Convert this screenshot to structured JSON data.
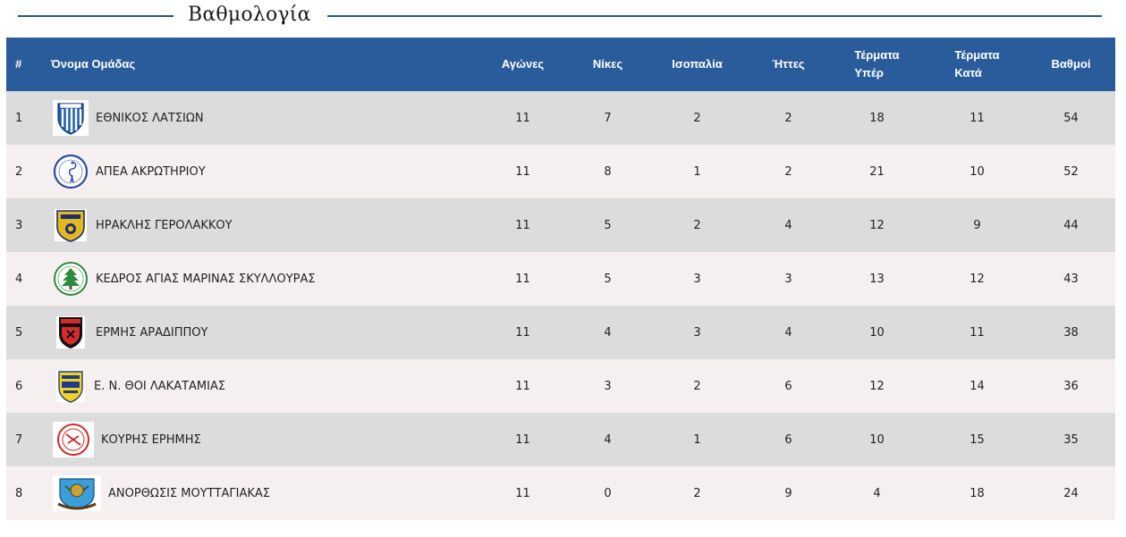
{
  "page": {
    "title": "Βαθμολογία"
  },
  "table": {
    "headers": {
      "pos": "#",
      "team": "Όνομα Ομάδας",
      "games": "Αγώνες",
      "wins": "Νίκες",
      "draws": "Ισοπαλία",
      "losses": "Ήττες",
      "goals_for_line1": "Τέρματα",
      "goals_for_line2": "Υπέρ",
      "goals_against_line1": "Τέρματα",
      "goals_against_line2": "Κατά",
      "points": "Βαθμοί"
    },
    "rows": [
      {
        "pos": "1",
        "team": "ΕΘΝΙΚΟΣ ΛΑΤΣΙΩΝ",
        "logo": "ethnikos-latsion-crest",
        "games": "11",
        "wins": "7",
        "draws": "2",
        "losses": "2",
        "goals_for": "18",
        "goals_against": "11",
        "points": "54"
      },
      {
        "pos": "2",
        "team": "ΑΠΕΑ ΑΚΡΩΤΗΡΙΟΥ",
        "logo": "apea-akrotiriou-crest",
        "games": "11",
        "wins": "8",
        "draws": "1",
        "losses": "2",
        "goals_for": "21",
        "goals_against": "10",
        "points": "52"
      },
      {
        "pos": "3",
        "team": "ΗΡΑΚΛΗΣ ΓΕΡΟΛΑΚΚΟΥ",
        "logo": "iraklis-gerolakkou-crest",
        "games": "11",
        "wins": "5",
        "draws": "2",
        "losses": "4",
        "goals_for": "12",
        "goals_against": "9",
        "points": "44"
      },
      {
        "pos": "4",
        "team": "ΚΕΔΡΟΣ ΑΓΙΑΣ ΜΑΡΙΝΑΣ ΣΚΥΛΛΟΥΡΑΣ",
        "logo": "kedros-crest",
        "games": "11",
        "wins": "5",
        "draws": "3",
        "losses": "3",
        "goals_for": "13",
        "goals_against": "12",
        "points": "43"
      },
      {
        "pos": "5",
        "team": "ΕΡΜΗΣ ΑΡΑΔΙΠΠΟΥ",
        "logo": "ermis-aradippou-crest",
        "games": "11",
        "wins": "4",
        "draws": "3",
        "losses": "4",
        "goals_for": "10",
        "goals_against": "11",
        "points": "38"
      },
      {
        "pos": "6",
        "team": "Ε. Ν. ΘΟΙ ΛΑΚΑΤΑΜΙΑΣ",
        "logo": "thoi-lakatamias-crest",
        "games": "11",
        "wins": "3",
        "draws": "2",
        "losses": "6",
        "goals_for": "12",
        "goals_against": "14",
        "points": "36"
      },
      {
        "pos": "7",
        "team": "ΚΟΥΡΗΣ ΕΡΗΜΗΣ",
        "logo": "kouris-erimis-crest",
        "games": "11",
        "wins": "4",
        "draws": "1",
        "losses": "6",
        "goals_for": "10",
        "goals_against": "15",
        "points": "35"
      },
      {
        "pos": "8",
        "team": "ΑΝΟΡΘΩΣΙΣ ΜΟΥΤΤΑΓΙΑΚΑΣ",
        "logo": "anorthosis-mouttagiakas-crest",
        "games": "11",
        "wins": "0",
        "draws": "2",
        "losses": "9",
        "goals_for": "4",
        "goals_against": "18",
        "points": "24"
      }
    ]
  },
  "colors": {
    "header_bg": "#2a5c9c",
    "row_odd_bg": "#dcdcdc",
    "row_even_bg": "#f6eff0",
    "title_line": "#2a5478"
  }
}
